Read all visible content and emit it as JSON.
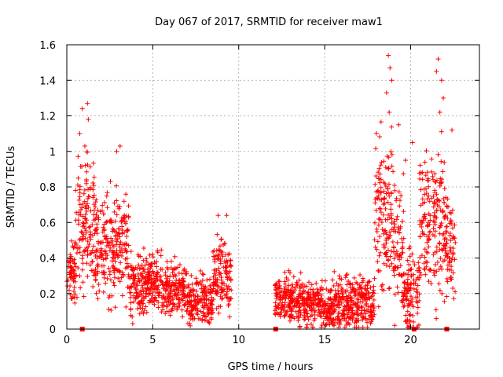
{
  "chart_data": {
    "type": "scatter",
    "title": "Day 067 of 2017, SRMTID for receiver maw1",
    "xlabel": "GPS time / hours",
    "ylabel": "SRMTID / TECUs",
    "xlim": [
      0,
      24
    ],
    "ylim": [
      0,
      1.6
    ],
    "xticks": [
      "0",
      "5",
      "10",
      "15",
      "20"
    ],
    "xtick_values": [
      0,
      5,
      10,
      15,
      20
    ],
    "yticks": [
      "0",
      "0.2",
      "0.4",
      "0.6",
      "0.8",
      "1",
      "1.2",
      "1.4",
      "1.6"
    ],
    "ytick_values": [
      0,
      0.2,
      0.4,
      0.6,
      0.8,
      1.0,
      1.2,
      1.4,
      1.6
    ],
    "grid": true,
    "marker": "plus",
    "color": "#ff0000",
    "outliers": [
      {
        "x": 0.9,
        "y": 1.24
      },
      {
        "x": 1.2,
        "y": 1.27
      },
      {
        "x": 1.25,
        "y": 1.18
      },
      {
        "x": 0.75,
        "y": 1.1
      },
      {
        "x": 1.05,
        "y": 1.03
      },
      {
        "x": 3.1,
        "y": 1.03
      },
      {
        "x": 2.9,
        "y": 1.0
      },
      {
        "x": 8.8,
        "y": 0.64
      },
      {
        "x": 9.3,
        "y": 0.64
      },
      {
        "x": 18.7,
        "y": 1.54
      },
      {
        "x": 18.8,
        "y": 1.47
      },
      {
        "x": 18.9,
        "y": 1.4
      },
      {
        "x": 18.6,
        "y": 1.33
      },
      {
        "x": 18.75,
        "y": 1.22
      },
      {
        "x": 19.3,
        "y": 1.15
      },
      {
        "x": 21.6,
        "y": 1.52
      },
      {
        "x": 21.5,
        "y": 1.45
      },
      {
        "x": 21.8,
        "y": 1.4
      },
      {
        "x": 21.9,
        "y": 1.3
      },
      {
        "x": 21.7,
        "y": 1.22
      },
      {
        "x": 22.4,
        "y": 1.12
      },
      {
        "x": 20.1,
        "y": 1.05
      },
      {
        "x": 19.7,
        "y": 0.95
      },
      {
        "x": 20.6,
        "y": 0.88
      }
    ],
    "segments": [
      {
        "x0": 0.0,
        "x1": 0.5,
        "center": 0.32,
        "spread": 0.14
      },
      {
        "x0": 0.5,
        "x1": 1.6,
        "center": 0.62,
        "spread": 0.3
      },
      {
        "x0": 1.6,
        "x1": 3.6,
        "center": 0.48,
        "spread": 0.24
      },
      {
        "x0": 3.6,
        "x1": 5.5,
        "center": 0.25,
        "spread": 0.14
      },
      {
        "x0": 5.5,
        "x1": 7.0,
        "center": 0.22,
        "spread": 0.12
      },
      {
        "x0": 7.0,
        "x1": 8.5,
        "center": 0.16,
        "spread": 0.11
      },
      {
        "x0": 8.5,
        "x1": 9.6,
        "center": 0.3,
        "spread": 0.18
      },
      {
        "x0": 12.1,
        "x1": 13.8,
        "center": 0.17,
        "spread": 0.11
      },
      {
        "x0": 13.8,
        "x1": 15.5,
        "center": 0.13,
        "spread": 0.1
      },
      {
        "x0": 15.5,
        "x1": 17.9,
        "center": 0.15,
        "spread": 0.12
      },
      {
        "x0": 17.9,
        "x1": 19.0,
        "center": 0.62,
        "spread": 0.35
      },
      {
        "x0": 19.0,
        "x1": 19.6,
        "center": 0.45,
        "spread": 0.3
      },
      {
        "x0": 19.6,
        "x1": 20.5,
        "center": 0.2,
        "spread": 0.2
      },
      {
        "x0": 20.5,
        "x1": 22.0,
        "center": 0.6,
        "spread": 0.35
      },
      {
        "x0": 22.0,
        "x1": 22.6,
        "center": 0.45,
        "spread": 0.25
      }
    ],
    "gap_markers": [
      {
        "x": 0.9,
        "y": 0
      },
      {
        "x": 12.15,
        "y": 0
      },
      {
        "x": 20.2,
        "y": 0
      },
      {
        "x": 22.1,
        "y": 0
      }
    ]
  }
}
